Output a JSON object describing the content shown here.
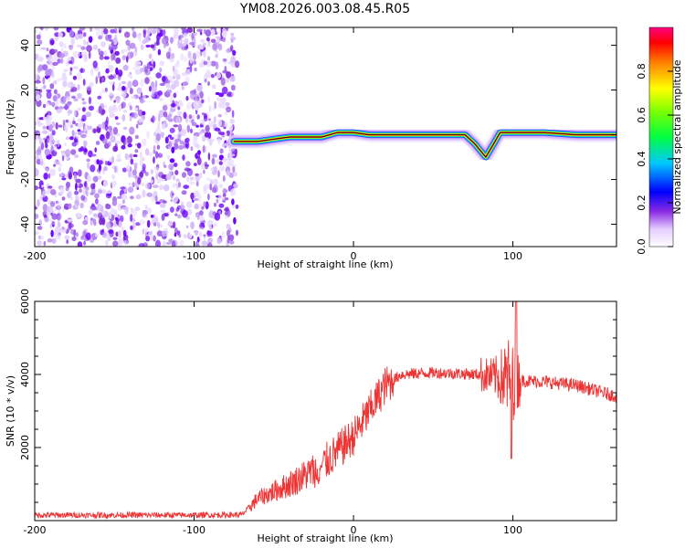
{
  "title": "YM08.2026.003.08.45.R05",
  "chart_data": [
    {
      "type": "heatmap",
      "xlabel": "Height of straight line (km)",
      "ylabel": "Frequency (Hz)",
      "xlim": [
        -200,
        165
      ],
      "ylim": [
        -50,
        48
      ],
      "x_ticks": [
        -200,
        -100,
        0,
        100
      ],
      "y_ticks": [
        -40,
        -20,
        0,
        20,
        40
      ],
      "noise_region_x": [
        -200,
        -73
      ],
      "ridge": [
        {
          "x": -75,
          "y": -3
        },
        {
          "x": -70,
          "y": -3
        },
        {
          "x": -60,
          "y": -3
        },
        {
          "x": -50,
          "y": -2
        },
        {
          "x": -40,
          "y": -1
        },
        {
          "x": -30,
          "y": -1
        },
        {
          "x": -20,
          "y": -1
        },
        {
          "x": -15,
          "y": 0
        },
        {
          "x": -10,
          "y": 1
        },
        {
          "x": 0,
          "y": 1
        },
        {
          "x": 10,
          "y": 0
        },
        {
          "x": 20,
          "y": 0
        },
        {
          "x": 40,
          "y": 0
        },
        {
          "x": 60,
          "y": 0
        },
        {
          "x": 70,
          "y": 0
        },
        {
          "x": 76,
          "y": -4
        },
        {
          "x": 83,
          "y": -10
        },
        {
          "x": 88,
          "y": -4
        },
        {
          "x": 92,
          "y": 1
        },
        {
          "x": 100,
          "y": 1
        },
        {
          "x": 120,
          "y": 1
        },
        {
          "x": 140,
          "y": 0
        },
        {
          "x": 165,
          "y": 0
        }
      ],
      "colorbar": {
        "label": "Normalized spectral amplitude",
        "range": [
          0,
          1
        ],
        "ticks": [
          "0.0",
          "0.2",
          "0.4",
          "0.6",
          "0.8"
        ]
      }
    },
    {
      "type": "line",
      "xlabel": "Height of straight line (km)",
      "ylabel": "SNR (10 * v/v)",
      "xlim": [
        -200,
        165
      ],
      "ylim": [
        0,
        6000
      ],
      "x_ticks": [
        -200,
        -100,
        0,
        100
      ],
      "y_ticks": [
        2000,
        4000,
        6000
      ],
      "color": "#ee3333",
      "trend": [
        {
          "x": -200,
          "y": 150
        },
        {
          "x": -100,
          "y": 150
        },
        {
          "x": -70,
          "y": 160
        },
        {
          "x": -60,
          "y": 600
        },
        {
          "x": -40,
          "y": 1000
        },
        {
          "x": -20,
          "y": 1500
        },
        {
          "x": 0,
          "y": 2300
        },
        {
          "x": 10,
          "y": 3000
        },
        {
          "x": 20,
          "y": 3700
        },
        {
          "x": 30,
          "y": 4000
        },
        {
          "x": 50,
          "y": 4050
        },
        {
          "x": 80,
          "y": 4000
        },
        {
          "x": 100,
          "y": 3850
        },
        {
          "x": 120,
          "y": 3800
        },
        {
          "x": 140,
          "y": 3700
        },
        {
          "x": 165,
          "y": 3400
        }
      ]
    }
  ]
}
